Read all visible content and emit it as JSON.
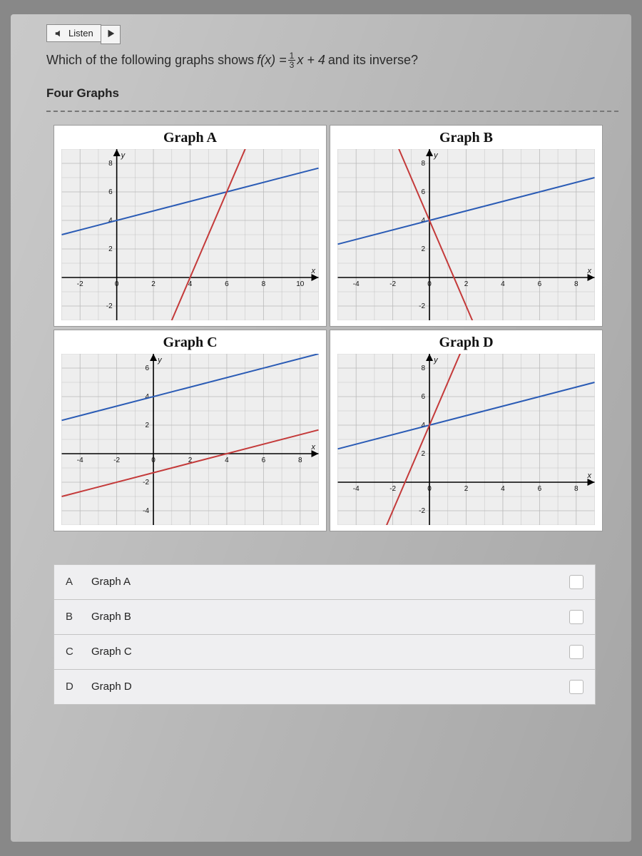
{
  "listen": {
    "label": "Listen"
  },
  "question": {
    "prefix": "Which of the following graphs shows ",
    "fx": "f(x) =",
    "frac_num": "1",
    "frac_den": "3",
    "middle": "x + 4",
    "suffix": " and its inverse?"
  },
  "section_title": "Four Graphs",
  "graphs": {
    "grid_color": "#b9b9b9",
    "axis_color": "#000000",
    "line1_color": "#2a5bb5",
    "line2_color": "#c43a3a",
    "background": "#eeeeee",
    "title_fontsize": 20,
    "tick_fontsize": 10,
    "items": [
      {
        "title": "Graph A",
        "xlim": [
          -3,
          11
        ],
        "ylim": [
          -3,
          9
        ],
        "xticks": [
          -2,
          0,
          2,
          4,
          6,
          8,
          10
        ],
        "yticks": [
          -2,
          0,
          2,
          4,
          6,
          8
        ],
        "line1": {
          "m": 0.3333,
          "b": 4
        },
        "line2": {
          "m": 3,
          "b": -12
        }
      },
      {
        "title": "Graph B",
        "xlim": [
          -5,
          9
        ],
        "ylim": [
          -3,
          9
        ],
        "xticks": [
          -4,
          -2,
          0,
          2,
          4,
          6,
          8
        ],
        "yticks": [
          -2,
          0,
          2,
          4,
          6,
          8
        ],
        "line1": {
          "m": 0.3333,
          "b": 4
        },
        "line2": {
          "m": -3,
          "b": 4
        }
      },
      {
        "title": "Graph C",
        "xlim": [
          -5,
          9
        ],
        "ylim": [
          -5,
          7
        ],
        "xticks": [
          -4,
          -2,
          0,
          2,
          4,
          6,
          8
        ],
        "yticks": [
          -4,
          -2,
          0,
          2,
          4,
          6
        ],
        "line1": {
          "m": 0.3333,
          "b": 4
        },
        "line2": {
          "m": 0.3333,
          "b": -1.333
        }
      },
      {
        "title": "Graph D",
        "xlim": [
          -5,
          9
        ],
        "ylim": [
          -3,
          9
        ],
        "xticks": [
          -4,
          -2,
          0,
          2,
          4,
          6,
          8
        ],
        "yticks": [
          -2,
          0,
          2,
          4,
          6,
          8
        ],
        "line1": {
          "m": 0.3333,
          "b": 4
        },
        "line2": {
          "m": 3,
          "b": 4
        }
      }
    ]
  },
  "answers": [
    {
      "letter": "A",
      "label": "Graph A"
    },
    {
      "letter": "B",
      "label": "Graph B"
    },
    {
      "letter": "C",
      "label": "Graph C"
    },
    {
      "letter": "D",
      "label": "Graph D"
    }
  ]
}
